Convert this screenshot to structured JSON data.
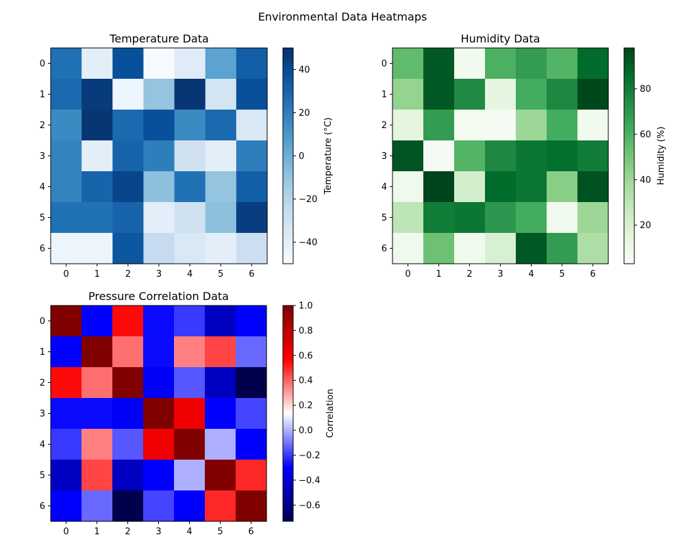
{
  "figure_title": "Environmental Data Heatmaps",
  "chart_data": [
    {
      "type": "heatmap",
      "title": "Temperature Data",
      "xlabel": "",
      "ylabel": "",
      "colorbar_label": "Temperature (°C)",
      "colormap": "Blues",
      "colors": {
        "low": "#f7fbff",
        "high": "#08306b"
      },
      "x_ticks": [
        "0",
        "1",
        "2",
        "3",
        "4",
        "5",
        "6"
      ],
      "y_ticks": [
        "0",
        "1",
        "2",
        "3",
        "4",
        "5",
        "6"
      ],
      "vmin": -50,
      "vmax": 50,
      "colorbar_ticks": [
        -40,
        -20,
        0,
        20,
        40
      ],
      "colorbar_tick_labels": [
        "−40",
        "−20",
        "0",
        "20",
        "40"
      ],
      "values": [
        [
          25,
          -40,
          38,
          -50,
          -38,
          5,
          32
        ],
        [
          28,
          46,
          -45,
          -10,
          48,
          -32,
          38
        ],
        [
          15,
          48,
          28,
          38,
          15,
          28,
          -35
        ],
        [
          18,
          -40,
          30,
          20,
          -30,
          -40,
          20
        ],
        [
          18,
          30,
          42,
          -8,
          25,
          -10,
          32
        ],
        [
          25,
          25,
          30,
          -40,
          -30,
          -8,
          45
        ],
        [
          -45,
          -45,
          35,
          -25,
          -35,
          -40,
          -28
        ]
      ]
    },
    {
      "type": "heatmap",
      "title": "Humidity Data",
      "xlabel": "",
      "ylabel": "",
      "colorbar_label": "Humidity (%)",
      "colormap": "Greens",
      "colors": {
        "low": "#f7fcf5",
        "high": "#00441b"
      },
      "x_ticks": [
        "0",
        "1",
        "2",
        "3",
        "4",
        "5",
        "6"
      ],
      "y_ticks": [
        "0",
        "1",
        "2",
        "3",
        "4",
        "5",
        "6"
      ],
      "vmin": 3,
      "vmax": 98,
      "colorbar_ticks": [
        20,
        40,
        60,
        80
      ],
      "colorbar_tick_labels": [
        "20",
        "40",
        "60",
        "80"
      ],
      "values": [
        [
          55,
          92,
          7,
          60,
          68,
          58,
          86
        ],
        [
          42,
          92,
          75,
          15,
          62,
          76,
          97
        ],
        [
          15,
          68,
          5,
          4,
          40,
          62,
          7
        ],
        [
          93,
          4,
          58,
          76,
          82,
          85,
          80
        ],
        [
          8,
          98,
          22,
          86,
          82,
          45,
          94
        ],
        [
          30,
          80,
          82,
          70,
          62,
          7,
          40
        ],
        [
          8,
          52,
          8,
          20,
          92,
          68,
          35
        ]
      ]
    },
    {
      "type": "heatmap",
      "title": "Pressure Correlation Data",
      "xlabel": "",
      "ylabel": "",
      "colorbar_label": "Correlation",
      "colormap": "seismic",
      "colors": {
        "low": "#00004c",
        "mid": "#ffffff",
        "high": "#800000"
      },
      "x_ticks": [
        "0",
        "1",
        "2",
        "3",
        "4",
        "5",
        "6"
      ],
      "y_ticks": [
        "0",
        "1",
        "2",
        "3",
        "4",
        "5",
        "6"
      ],
      "vmin": -0.73,
      "vmax": 1.0,
      "colorbar_ticks": [
        -0.6,
        -0.4,
        -0.2,
        0.0,
        0.2,
        0.4,
        0.6,
        0.8,
        1.0
      ],
      "colorbar_tick_labels": [
        "−0.6",
        "−0.4",
        "−0.2",
        "0.0",
        "0.2",
        "0.4",
        "0.6",
        "0.8",
        "1.0"
      ],
      "values": [
        [
          1.0,
          -0.3,
          0.55,
          -0.28,
          -0.2,
          -0.45,
          -0.3
        ],
        [
          -0.3,
          1.0,
          0.38,
          -0.28,
          0.35,
          0.45,
          -0.12
        ],
        [
          0.55,
          0.38,
          1.0,
          -0.32,
          -0.15,
          -0.45,
          -0.73
        ],
        [
          -0.28,
          -0.28,
          -0.32,
          1.0,
          0.62,
          -0.3,
          -0.18
        ],
        [
          -0.2,
          0.35,
          -0.15,
          0.62,
          1.0,
          0.0,
          -0.3
        ],
        [
          -0.45,
          0.45,
          -0.45,
          -0.3,
          0.0,
          1.0,
          0.5
        ],
        [
          -0.3,
          -0.12,
          -0.73,
          -0.18,
          -0.3,
          0.5,
          1.0
        ]
      ]
    }
  ]
}
